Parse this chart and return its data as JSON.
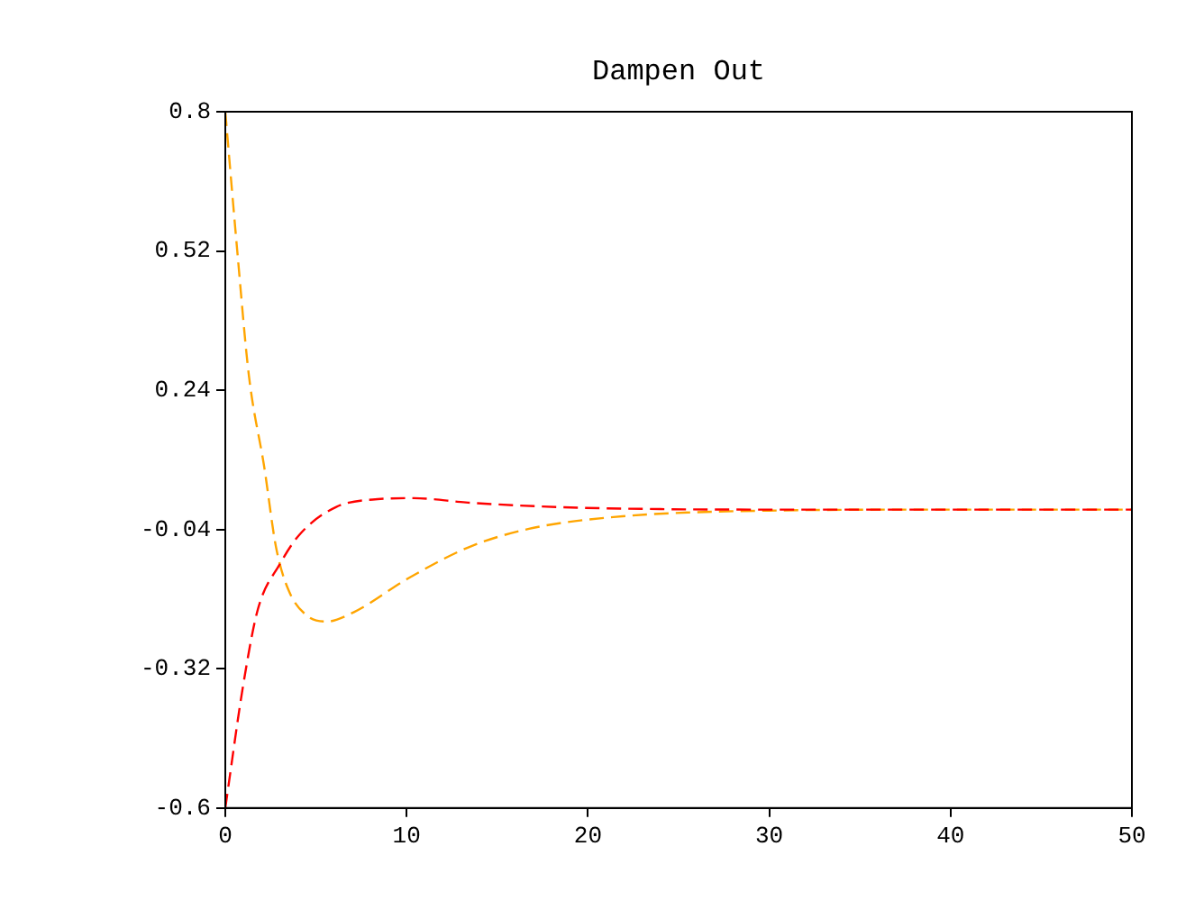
{
  "chart_data": {
    "type": "line",
    "title": "Dampen Out",
    "xlim": [
      0,
      50
    ],
    "xticks": [
      0,
      10,
      20,
      30,
      40,
      50
    ],
    "ylim": [
      -0.6,
      0.8
    ],
    "yticks": [
      0.8,
      0.52,
      0.24,
      -0.04,
      -0.32,
      -0.6
    ],
    "grid": false,
    "legend": false,
    "marker": "none",
    "series": [
      {
        "color": "#ff0000",
        "line_style": "dashed",
        "x": [
          0,
          1,
          1.8,
          3,
          4.1,
          6.1,
          8.4,
          10.4,
          13.4,
          18.4,
          24,
          30,
          40,
          50
        ],
        "values": [
          -0.6,
          -0.35,
          -0.2,
          -0.11,
          -0.05,
          0.005,
          0.021,
          0.023,
          0.014,
          0.005,
          0.001,
          0,
          0,
          0
        ]
      },
      {
        "color": "#ffa500",
        "line_style": "dashed",
        "x": [
          0,
          0.66,
          1.3,
          2.15,
          2.8,
          3.5,
          4.5,
          5.6,
          7.1,
          10.1,
          13.4,
          16.7,
          21.4,
          30,
          40,
          50
        ],
        "values": [
          0.8,
          0.52,
          0.27,
          0.085,
          -0.076,
          -0.163,
          -0.213,
          -0.225,
          -0.206,
          -0.138,
          -0.076,
          -0.039,
          -0.015,
          -0.002,
          0,
          0
        ]
      }
    ]
  }
}
